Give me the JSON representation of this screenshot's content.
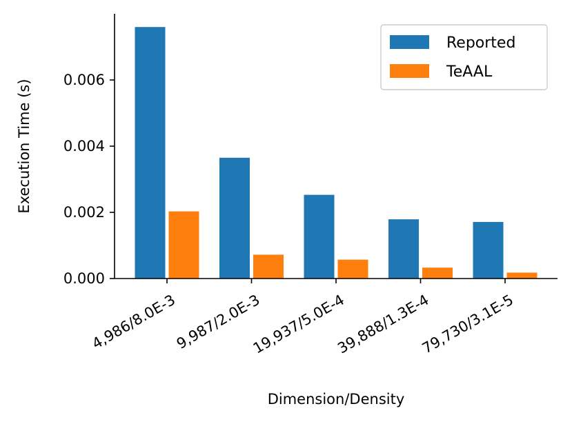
{
  "chart_data": {
    "type": "bar",
    "title": "",
    "xlabel": "Dimension/Density",
    "ylabel": "Execution Time (s)",
    "categories": [
      "4,986/8.0E-3",
      "9,987/2.0E-3",
      "19,937/5.0E-4",
      "39,888/1.3E-4",
      "79,730/3.1E-5"
    ],
    "series": [
      {
        "name": "Reported",
        "color": "#1f77b4",
        "values": [
          0.0076,
          0.00365,
          0.00253,
          0.00179,
          0.00171
        ]
      },
      {
        "name": "TeAAL",
        "color": "#ff7f0e",
        "values": [
          0.00203,
          0.00072,
          0.00057,
          0.00033,
          0.00018
        ]
      }
    ],
    "ylim": [
      0,
      0.008
    ],
    "yticks": [
      "0.000",
      "0.002",
      "0.004",
      "0.006"
    ],
    "ytick_values": [
      0,
      0.002,
      0.004,
      0.006
    ],
    "legend_position": "top-right",
    "grid": false
  }
}
